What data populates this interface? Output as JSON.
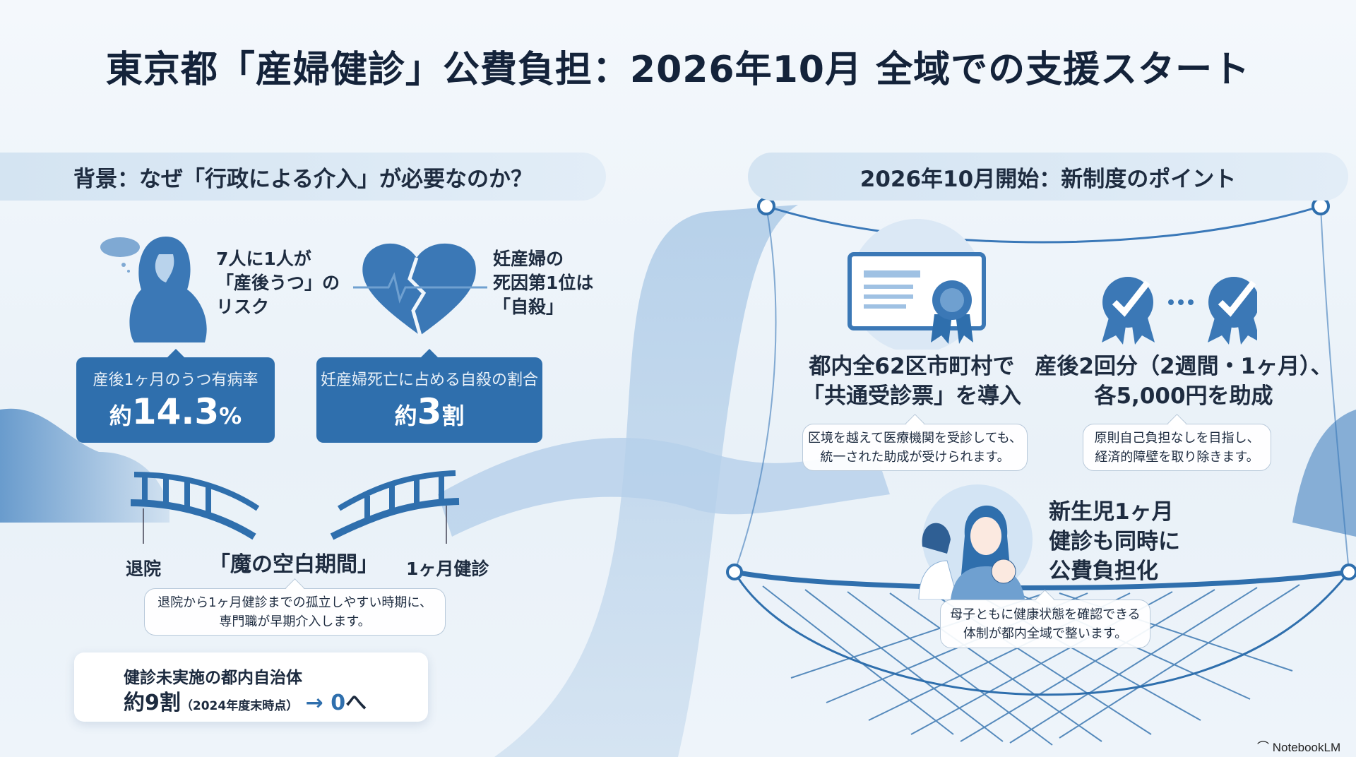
{
  "title": "東京都「産婦健診」公費負担：2026年10月 全域での支援スタート",
  "left": {
    "header": "背景：なぜ「行政による介入」が必要なのか？",
    "depression": {
      "label": [
        "7人に1人が",
        "「産後うつ」の",
        "リスク"
      ],
      "caption": "産後1ヶ月のうつ有病率",
      "value_prefix": "約",
      "value": "14.3",
      "value_unit": "%"
    },
    "suicide": {
      "label": [
        "妊産婦の",
        "死因第1位は",
        "「自殺」"
      ],
      "caption": "妊産婦死亡に占める自殺の割合",
      "value_prefix": "約",
      "value": "3",
      "value_unit": "割"
    },
    "bridge": {
      "left_label": "退院",
      "gap_label": "「魔の空白期間」",
      "right_label": "1ヶ月健診",
      "note": [
        "退院から1ヶ月健診までの孤立しやすい時期に、",
        "専門職が早期介入します。"
      ]
    },
    "municipalities": {
      "label": "健診未実施の都内自治体",
      "value": "約9割",
      "note": "（2024年度末時点）",
      "arrow": "→",
      "target": "0",
      "target_suffix": "へ"
    }
  },
  "right": {
    "header": "2026年10月開始：新制度のポイント",
    "points": [
      {
        "title": [
          "都内全62区市町村で",
          "「共通受診票」を導入"
        ],
        "note": [
          "区境を越えて医療機関を受診しても、",
          "統一された助成が受けられます。"
        ],
        "icon": "certificate-icon"
      },
      {
        "title": [
          "産後2回分（2週間・1ヶ月）、",
          "各5,000円を助成"
        ],
        "note": [
          "原則自己負担なしを目指し、",
          "経済的障壁を取り除きます。"
        ],
        "icon": "check-badge-icon"
      },
      {
        "title": [
          "新生児1ヶ月",
          "健診も同時に",
          "公費負担化"
        ],
        "note": [
          "母子ともに健康状態を確認できる",
          "体制が都内全域で整います。"
        ],
        "icon": "mother-baby-doctor-icon"
      }
    ]
  },
  "watermark": "NotebookLM",
  "colors": {
    "primary": "#2f6fad",
    "light": "#d4e4f2",
    "text": "#1e2c40"
  }
}
